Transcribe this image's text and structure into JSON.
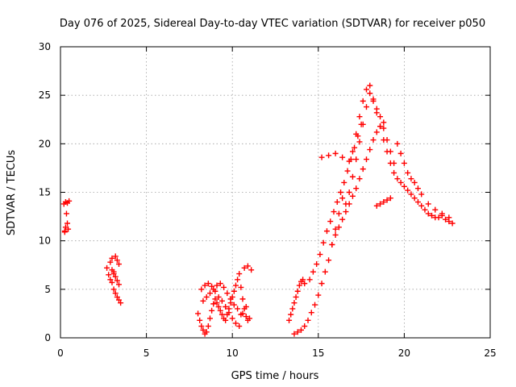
{
  "chart_data": {
    "type": "scatter",
    "title": "Day 076 of 2025, Sidereal Day-to-day VTEC variation (SDTVAR) for receiver p050",
    "xlabel": "GPS time / hours",
    "ylabel": "SDTVAR / TECUs",
    "xlim": [
      0,
      25
    ],
    "ylim": [
      0,
      30
    ],
    "xticks": [
      0,
      5,
      10,
      15,
      20,
      25
    ],
    "yticks": [
      0,
      5,
      10,
      15,
      20,
      25,
      30
    ],
    "grid": true,
    "marker": "plus",
    "color": "#ff0000",
    "series": [
      {
        "name": "SDTVAR",
        "x": [
          0.2,
          0.3,
          0.4,
          0.5,
          0.35,
          0.25,
          0.3,
          0.4,
          0.45,
          0.25,
          2.7,
          2.8,
          2.9,
          3.0,
          3.1,
          3.2,
          3.3,
          3.4,
          3.5,
          2.9,
          3.0,
          3.2,
          3.3,
          3.4,
          3.1,
          3.2,
          3.3,
          3.4,
          3.0,
          3.1,
          8.0,
          8.1,
          8.2,
          8.3,
          8.4,
          8.5,
          8.6,
          8.7,
          8.8,
          8.9,
          9.0,
          9.1,
          9.2,
          9.3,
          9.4,
          9.5,
          9.6,
          9.7,
          9.8,
          9.9,
          10.0,
          10.1,
          10.2,
          10.3,
          10.4,
          10.5,
          10.6,
          10.7,
          10.8,
          10.9,
          11.0,
          8.2,
          8.4,
          8.6,
          8.8,
          9.0,
          9.2,
          9.4,
          9.6,
          9.8,
          10.0,
          10.2,
          10.4,
          10.6,
          10.8,
          8.3,
          8.5,
          8.7,
          8.9,
          9.1,
          9.3,
          9.5,
          9.7,
          9.9,
          10.1,
          10.3,
          10.5,
          10.7,
          10.9,
          11.1,
          13.3,
          13.4,
          13.5,
          13.6,
          13.7,
          13.8,
          13.9,
          14.0,
          14.1,
          14.2,
          13.6,
          13.8,
          14.0,
          14.2,
          14.4,
          14.6,
          14.8,
          15.0,
          15.2,
          15.4,
          15.6,
          15.8,
          16.0,
          16.2,
          16.4,
          14.5,
          14.7,
          14.9,
          15.1,
          15.3,
          15.5,
          15.7,
          15.9,
          16.1,
          16.3,
          16.5,
          16.7,
          16.9,
          17.1,
          17.3,
          17.5,
          15.8,
          16.0,
          16.2,
          16.4,
          16.6,
          16.8,
          17.0,
          17.2,
          17.4,
          17.6,
          17.8,
          18.0,
          18.2,
          18.4,
          18.6,
          18.8,
          16.6,
          16.8,
          17.0,
          17.2,
          17.4,
          17.6,
          17.8,
          18.0,
          18.2,
          18.4,
          18.6,
          18.8,
          19.0,
          19.2,
          19.4,
          17.0,
          17.2,
          17.4,
          17.6,
          17.8,
          18.0,
          18.2,
          18.4,
          18.6,
          18.8,
          19.0,
          19.2,
          19.4,
          19.6,
          19.8,
          20.0,
          20.2,
          20.4,
          20.6,
          20.8,
          21.0,
          21.2,
          21.4,
          21.6,
          21.8,
          22.0,
          22.2,
          22.4,
          22.6,
          22.8,
          19.6,
          19.8,
          20.0,
          20.2,
          20.4,
          20.6,
          20.8,
          21.0,
          21.4,
          21.8,
          22.2,
          22.6,
          18.4,
          18.6,
          18.8,
          19.0,
          19.2,
          15.2,
          15.6,
          16.0,
          16.4,
          16.8
        ],
        "y": [
          13.8,
          14.0,
          13.9,
          14.1,
          12.8,
          11.0,
          11.4,
          11.8,
          11.2,
          10.9,
          7.2,
          6.5,
          6.0,
          5.7,
          5.0,
          4.6,
          4.2,
          3.9,
          3.6,
          7.8,
          8.2,
          8.4,
          8.0,
          7.6,
          6.8,
          6.3,
          5.9,
          5.5,
          7.0,
          6.6,
          2.5,
          1.8,
          1.2,
          0.8,
          0.4,
          0.6,
          1.2,
          2.0,
          2.8,
          3.5,
          4.0,
          3.6,
          3.2,
          2.8,
          2.4,
          2.0,
          1.8,
          2.4,
          3.0,
          3.6,
          4.2,
          4.8,
          5.4,
          6.0,
          6.6,
          5.2,
          4.0,
          3.0,
          2.2,
          1.8,
          2.0,
          5.0,
          5.4,
          5.6,
          5.3,
          4.8,
          4.2,
          3.8,
          3.2,
          2.6,
          2.0,
          1.5,
          1.2,
          2.5,
          3.2,
          3.8,
          4.2,
          4.6,
          5.0,
          5.4,
          5.6,
          5.2,
          4.6,
          4.0,
          3.4,
          3.0,
          2.4,
          7.2,
          7.4,
          7.0,
          1.8,
          2.4,
          3.0,
          3.6,
          4.2,
          4.8,
          5.4,
          5.8,
          6.0,
          5.6,
          0.4,
          0.6,
          0.8,
          1.2,
          1.8,
          2.6,
          3.4,
          4.4,
          5.6,
          6.8,
          8.0,
          9.6,
          11.2,
          12.8,
          14.4,
          6.0,
          6.8,
          7.6,
          8.6,
          9.8,
          11.0,
          12.0,
          13.0,
          14.0,
          15.0,
          16.0,
          17.2,
          18.4,
          19.6,
          20.8,
          22.0,
          9.6,
          10.6,
          11.4,
          12.2,
          13.0,
          13.8,
          14.6,
          15.4,
          16.4,
          17.4,
          18.4,
          19.4,
          20.4,
          21.2,
          21.8,
          22.2,
          13.8,
          15.0,
          16.6,
          18.4,
          20.2,
          22.0,
          23.8,
          25.2,
          24.4,
          23.6,
          22.8,
          21.6,
          20.4,
          19.2,
          18.0,
          19.2,
          21.0,
          22.8,
          24.4,
          25.6,
          26.0,
          24.6,
          23.2,
          21.8,
          20.4,
          19.2,
          18.0,
          17.0,
          16.4,
          16.0,
          15.6,
          15.2,
          14.8,
          14.4,
          14.0,
          13.6,
          13.2,
          12.8,
          12.6,
          12.4,
          12.4,
          12.6,
          12.2,
          12.0,
          11.8,
          20.0,
          19.0,
          18.0,
          17.0,
          16.4,
          16.0,
          15.4,
          14.8,
          13.8,
          13.2,
          12.8,
          12.4,
          13.6,
          13.8,
          14.0,
          14.2,
          14.4,
          18.6,
          18.8,
          19.0,
          18.6,
          18.2
        ]
      }
    ]
  }
}
